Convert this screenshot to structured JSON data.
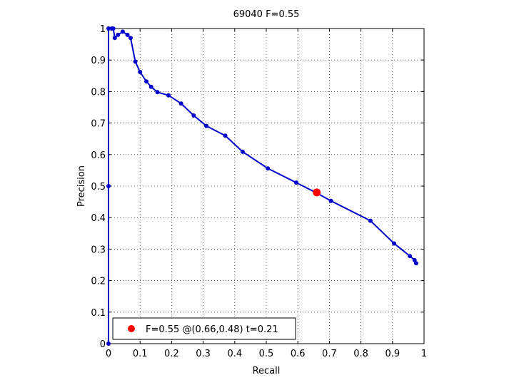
{
  "chart_data": {
    "type": "line",
    "title": "69040 F=0.55",
    "xlabel": "Recall",
    "ylabel": "Precision",
    "xlim": [
      0,
      1
    ],
    "ylim": [
      0,
      1
    ],
    "xticks": [
      "0",
      "0.1",
      "0.2",
      "0.3",
      "0.4",
      "0.5",
      "0.6",
      "0.7",
      "0.8",
      "0.9",
      "1"
    ],
    "yticks": [
      "0",
      "0.1",
      "0.2",
      "0.3",
      "0.4",
      "0.5",
      "0.6",
      "0.7",
      "0.8",
      "0.9",
      "1"
    ],
    "grid": true,
    "grid_style": "dotted",
    "series": [
      {
        "color": "#0000cc",
        "marker": "circle",
        "x": [
          0.0,
          0.0,
          0.0,
          0.01,
          0.015,
          0.02,
          0.03,
          0.045,
          0.06,
          0.07,
          0.085,
          0.1,
          0.12,
          0.135,
          0.155,
          0.19,
          0.23,
          0.27,
          0.31,
          0.37,
          0.425,
          0.505,
          0.595,
          0.66,
          0.705,
          0.83,
          0.905,
          0.955,
          0.97,
          0.975
        ],
        "y": [
          0.0,
          0.5,
          1.0,
          1.0,
          1.0,
          0.97,
          0.98,
          0.99,
          0.98,
          0.97,
          0.895,
          0.862,
          0.832,
          0.815,
          0.798,
          0.788,
          0.762,
          0.724,
          0.691,
          0.66,
          0.609,
          0.556,
          0.511,
          0.478,
          0.453,
          0.39,
          0.318,
          0.278,
          0.265,
          0.255
        ]
      }
    ],
    "highlight": {
      "x": 0.66,
      "y": 0.48,
      "color": "#ff0000"
    },
    "legend": {
      "position": "bottom-left",
      "text": "F=0.55 @(0.66,0.48) t=0.21"
    }
  }
}
